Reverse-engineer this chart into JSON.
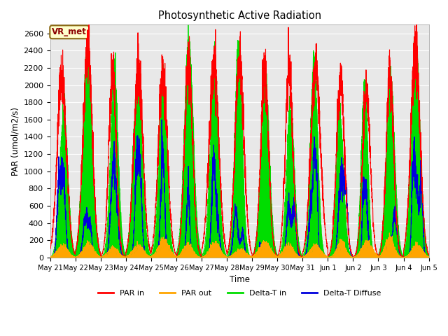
{
  "title": "Photosynthetic Active Radiation",
  "ylabel": "PAR (umol/m2/s)",
  "xlabel": "Time",
  "ylim": [
    0,
    2700
  ],
  "legend_label": "VR_met",
  "series_names": [
    "PAR in",
    "PAR out",
    "Delta-T in",
    "Delta-T Diffuse"
  ],
  "series_colors": [
    "#ff0000",
    "#ffa500",
    "#00dd00",
    "#0000dd"
  ],
  "n_days": 15,
  "pts_per_day": 288,
  "plot_bg": "#e8e8e8",
  "grid_color": "#ffffff",
  "tick_dates": [
    "May 21",
    "May 22",
    "May 23",
    "May 24",
    "May 25",
    "May 26",
    "May 27",
    "May 28",
    "May 29",
    "May 30",
    "May 31",
    "Jun 1",
    "Jun 2",
    "Jun 3",
    "Jun 4",
    "Jun 5"
  ],
  "par_in_peaks": [
    2060,
    2450,
    2160,
    2150,
    2130,
    2310,
    2230,
    2260,
    2150,
    2180,
    2200,
    2050,
    1950,
    2100,
    2400
  ],
  "delta_t_peaks": [
    1620,
    2270,
    2080,
    2030,
    2040,
    2420,
    2200,
    2440,
    2070,
    1680,
    2200,
    1640,
    1950,
    2050,
    2420
  ],
  "delta_td_peaks": [
    1000,
    460,
    1200,
    1200,
    1200,
    800,
    1150,
    530,
    150,
    600,
    1240,
    920,
    820,
    540,
    1150
  ],
  "par_out_peaks": [
    120,
    140,
    100,
    120,
    180,
    130,
    150,
    80,
    150,
    130,
    120,
    160,
    150,
    200,
    130
  ]
}
